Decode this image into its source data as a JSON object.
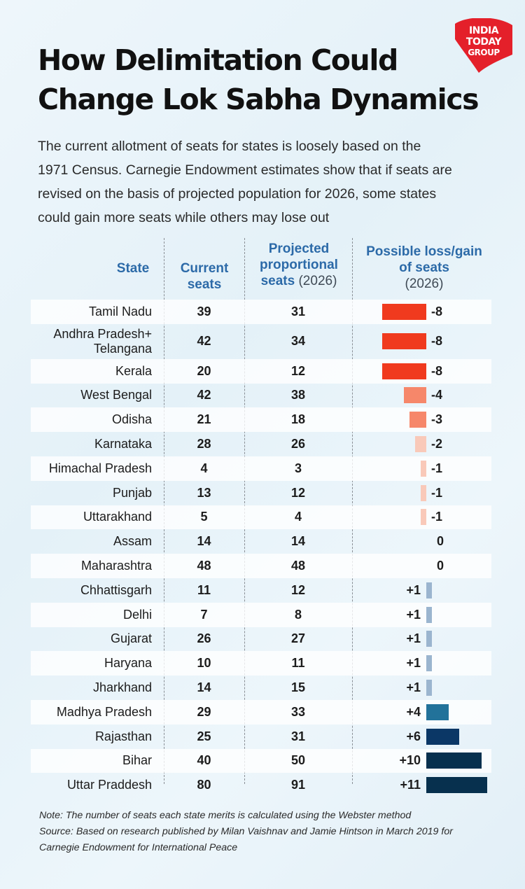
{
  "brand": {
    "line1": "INDIA",
    "line2": "TODAY",
    "line3": "GROUP"
  },
  "title_line1": "How Delimitation Could",
  "title_line2": "Change Lok Sabha Dynamics",
  "intro_lines": [
    "The current allotment of seats for states is loosely based on the",
    "1971 Census. Carnegie Endowment estimates show that if seats are",
    "revised on the basis of projected population for 2026, some states",
    "could gain more seats while others may lose out"
  ],
  "headers": {
    "state": "State",
    "current": [
      "Current",
      "seats"
    ],
    "projected": [
      "Projected",
      "proportional",
      "seats"
    ],
    "projected_year": "(2026)",
    "change": [
      "Possible loss/gain",
      "of seats"
    ],
    "change_year": "(2026)"
  },
  "colors": {
    "loss_large": "#f03a1e",
    "loss_medium": "#f6876a",
    "loss_small": "#f9c9b9",
    "gain_small": "#9bb5cf",
    "gain_medium": "#22729a",
    "gain_large": "#0b3766",
    "gain_xlarge": "#07304e",
    "header_text": "#2c6aa8"
  },
  "chart_data": {
    "type": "table",
    "columns": [
      "State",
      "Current seats",
      "Projected proportional seats (2026)",
      "Possible loss/gain of seats (2026)"
    ],
    "rows": [
      {
        "state": "Tamil Nadu",
        "current": 39,
        "projected": 31,
        "change": "-8"
      },
      {
        "state": "Andhra Pradesh+ Telangana",
        "current": 42,
        "projected": 34,
        "change": "-8"
      },
      {
        "state": "Kerala",
        "current": 20,
        "projected": 12,
        "change": "-8"
      },
      {
        "state": "West Bengal",
        "current": 42,
        "projected": 38,
        "change": "-4"
      },
      {
        "state": "Odisha",
        "current": 21,
        "projected": 18,
        "change": "-3"
      },
      {
        "state": "Karnataka",
        "current": 28,
        "projected": 26,
        "change": "-2"
      },
      {
        "state": "Himachal Pradesh",
        "current": 4,
        "projected": 3,
        "change": "-1"
      },
      {
        "state": "Punjab",
        "current": 13,
        "projected": 12,
        "change": "-1"
      },
      {
        "state": "Uttarakhand",
        "current": 5,
        "projected": 4,
        "change": "-1"
      },
      {
        "state": "Assam",
        "current": 14,
        "projected": 14,
        "change": "0"
      },
      {
        "state": "Maharashtra",
        "current": 48,
        "projected": 48,
        "change": "0"
      },
      {
        "state": "Chhattisgarh",
        "current": 11,
        "projected": 12,
        "change": "+1"
      },
      {
        "state": "Delhi",
        "current": 7,
        "projected": 8,
        "change": "+1"
      },
      {
        "state": "Gujarat",
        "current": 26,
        "projected": 27,
        "change": "+1"
      },
      {
        "state": "Haryana",
        "current": 10,
        "projected": 11,
        "change": "+1"
      },
      {
        "state": "Jharkhand",
        "current": 14,
        "projected": 15,
        "change": "+1"
      },
      {
        "state": "Madhya Pradesh",
        "current": 29,
        "projected": 33,
        "change": "+4"
      },
      {
        "state": "Rajasthan",
        "current": 25,
        "projected": 31,
        "change": "+6"
      },
      {
        "state": "Bihar",
        "current": 40,
        "projected": 50,
        "change": "+10"
      },
      {
        "state": "Uttar Praddesh",
        "current": 80,
        "projected": 91,
        "change": "+11"
      }
    ]
  },
  "notes": [
    "Note: The number of seats each state merits is calculated using the Webster method",
    "Source: Based on research published by Milan Vaishnav and Jamie Hintson in March 2019 for",
    "Carnegie Endowment for International Peace"
  ]
}
